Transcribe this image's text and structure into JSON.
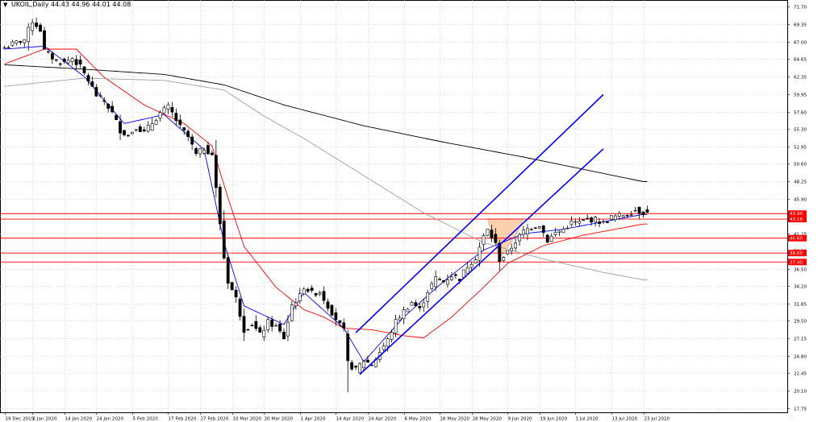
{
  "header": {
    "symbol_label": "UKOIL,Daily",
    "ohlc_label": "44.43 44.96 44.01 44.08"
  },
  "chart_data": {
    "type": "candlestick",
    "symbol": "UKOIL",
    "timeframe": "Daily",
    "ylim": [
      17.2,
      72.6
    ],
    "y_ticks": [
      71.7,
      69.35,
      67.0,
      64.65,
      62.35,
      59.95,
      57.6,
      55.3,
      52.95,
      50.6,
      48.25,
      45.9,
      43.55,
      41.25,
      38.9,
      36.5,
      34.2,
      31.85,
      29.5,
      27.15,
      24.8,
      22.45,
      20.1,
      17.75
    ],
    "x_ticks": [
      "19 Dec 2019",
      "2 Jan 2020",
      "14 Jan 2020",
      "24 Jan 2020",
      "5 Feb 2020",
      "17 Feb 2020",
      "27 Feb 2020",
      "10 Mar 2020",
      "20 Mar 2020",
      "1 Apr 2020",
      "14 Apr 2020",
      "24 Apr 2020",
      "6 May 2020",
      "18 May 2020",
      "28 May 2020",
      "9 Jun 2020",
      "19 Jun 2020",
      "1 Jul 2020",
      "13 Jul 2020",
      "23 Jul 2020"
    ],
    "x_tick_bar_index": [
      0,
      7,
      15,
      23,
      32,
      41,
      49,
      57,
      65,
      74,
      83,
      91,
      100,
      109,
      117,
      126,
      134,
      143,
      152,
      160
    ],
    "bar_count": 162,
    "close_anchors": [
      [
        0,
        66.2
      ],
      [
        3,
        66.9
      ],
      [
        5,
        67.3
      ],
      [
        7,
        69.8
      ],
      [
        9,
        68.6
      ],
      [
        10,
        65.8
      ],
      [
        13,
        64.4
      ],
      [
        15,
        64.2
      ],
      [
        17,
        64.8
      ],
      [
        19,
        63.6
      ],
      [
        21,
        61.8
      ],
      [
        23,
        59.8
      ],
      [
        25,
        59.0
      ],
      [
        27,
        57.4
      ],
      [
        29,
        55.1
      ],
      [
        31,
        54.4
      ],
      [
        33,
        55.6
      ],
      [
        35,
        54.8
      ],
      [
        37,
        56.1
      ],
      [
        39,
        57.4
      ],
      [
        41,
        58.2
      ],
      [
        42,
        57.4
      ],
      [
        44,
        55.5
      ],
      [
        46,
        54.2
      ],
      [
        48,
        51.8
      ],
      [
        50,
        52.7
      ],
      [
        52,
        51.9
      ],
      [
        53,
        47.2
      ],
      [
        55,
        38.0
      ],
      [
        56,
        34.8
      ],
      [
        58,
        32.5
      ],
      [
        60,
        28.3
      ],
      [
        62,
        29.1
      ],
      [
        64,
        27.6
      ],
      [
        66,
        29.3
      ],
      [
        68,
        28.7
      ],
      [
        70,
        27.2
      ],
      [
        72,
        31.6
      ],
      [
        74,
        32.8
      ],
      [
        75,
        34.1
      ],
      [
        77,
        33.2
      ],
      [
        79,
        33.4
      ],
      [
        81,
        31.5
      ],
      [
        83,
        29.8
      ],
      [
        85,
        28.1
      ],
      [
        86,
        23.8
      ],
      [
        88,
        22.9
      ],
      [
        90,
        24.2
      ],
      [
        92,
        23.6
      ],
      [
        94,
        25.3
      ],
      [
        96,
        26.9
      ],
      [
        98,
        29.4
      ],
      [
        100,
        30.8
      ],
      [
        102,
        32.0
      ],
      [
        104,
        31.0
      ],
      [
        106,
        33.5
      ],
      [
        108,
        35.2
      ],
      [
        110,
        34.8
      ],
      [
        112,
        35.6
      ],
      [
        114,
        35.2
      ],
      [
        116,
        36.9
      ],
      [
        118,
        38.0
      ],
      [
        120,
        40.8
      ],
      [
        121,
        41.7
      ],
      [
        123,
        39.8
      ],
      [
        124,
        37.7
      ],
      [
        126,
        38.6
      ],
      [
        128,
        40.2
      ],
      [
        130,
        41.5
      ],
      [
        132,
        42.1
      ],
      [
        134,
        42.4
      ],
      [
        136,
        40.3
      ],
      [
        138,
        41.3
      ],
      [
        140,
        41.8
      ],
      [
        142,
        42.7
      ],
      [
        144,
        42.7
      ],
      [
        146,
        43.1
      ],
      [
        148,
        43.1
      ],
      [
        150,
        42.6
      ],
      [
        152,
        43.4
      ],
      [
        154,
        43.6
      ],
      [
        156,
        43.9
      ],
      [
        158,
        44.4
      ],
      [
        159,
        44.2
      ],
      [
        160,
        44.08
      ]
    ],
    "last_bar": {
      "open": 44.43,
      "high": 44.96,
      "low": 44.01,
      "close": 44.08
    },
    "lows_marked": [
      [
        86,
        19.9
      ]
    ],
    "moving_averages": [
      {
        "color": "#0000ff",
        "anchors": [
          [
            0,
            66.0
          ],
          [
            10,
            66.4
          ],
          [
            20,
            62.3
          ],
          [
            30,
            56.0
          ],
          [
            40,
            57.2
          ],
          [
            50,
            52.5
          ],
          [
            55,
            40.0
          ],
          [
            60,
            31.5
          ],
          [
            70,
            29.0
          ],
          [
            75,
            33.3
          ],
          [
            85,
            28.5
          ],
          [
            90,
            24.0
          ],
          [
            100,
            30.0
          ],
          [
            110,
            34.8
          ],
          [
            120,
            39.0
          ],
          [
            130,
            41.2
          ],
          [
            140,
            41.8
          ],
          [
            150,
            42.8
          ],
          [
            160,
            43.8
          ]
        ]
      },
      {
        "color": "#ff0000",
        "anchors": [
          [
            0,
            64.0
          ],
          [
            10,
            66.0
          ],
          [
            18,
            66.0
          ],
          [
            25,
            62.2
          ],
          [
            35,
            58.5
          ],
          [
            45,
            56.0
          ],
          [
            52,
            53.0
          ],
          [
            56,
            46.0
          ],
          [
            60,
            39.5
          ],
          [
            68,
            34.0
          ],
          [
            75,
            31.0
          ],
          [
            80,
            30.0
          ],
          [
            85,
            28.5
          ],
          [
            92,
            28.3
          ],
          [
            100,
            27.5
          ],
          [
            105,
            27.2
          ],
          [
            112,
            30.0
          ],
          [
            120,
            34.0
          ],
          [
            126,
            37.2
          ],
          [
            135,
            39.6
          ],
          [
            145,
            41.0
          ],
          [
            155,
            42.0
          ],
          [
            160,
            42.5
          ]
        ]
      },
      {
        "color": "#000000",
        "anchors": [
          [
            0,
            63.9
          ],
          [
            20,
            63.3
          ],
          [
            40,
            62.6
          ],
          [
            55,
            61.2
          ],
          [
            70,
            58.5
          ],
          [
            90,
            55.7
          ],
          [
            110,
            53.5
          ],
          [
            130,
            51.5
          ],
          [
            150,
            49.3
          ],
          [
            160,
            48.2
          ]
        ]
      },
      {
        "color": "#a0a0a0",
        "anchors": [
          [
            0,
            61.0
          ],
          [
            20,
            62.1
          ],
          [
            40,
            61.8
          ],
          [
            55,
            60.5
          ],
          [
            65,
            57.0
          ],
          [
            75,
            54.0
          ],
          [
            90,
            49.0
          ],
          [
            105,
            44.0
          ],
          [
            120,
            40.0
          ],
          [
            135,
            37.8
          ],
          [
            150,
            36.0
          ],
          [
            160,
            35.0
          ]
        ]
      }
    ],
    "channel_lines": [
      {
        "color": "#0000ff",
        "from": [
          88,
          27.9
        ],
        "to": [
          150,
          59.9
        ]
      },
      {
        "color": "#0000ff",
        "from": [
          89,
          22.3
        ],
        "to": [
          150,
          52.6
        ]
      }
    ],
    "triangle_zone": {
      "color": "#f9c8a0",
      "points": [
        [
          121,
          43.2
        ],
        [
          130,
          43.2
        ],
        [
          128,
          40.9
        ],
        [
          124,
          37.9
        ]
      ]
    },
    "support_resistance": [
      {
        "price": 43.9,
        "label": "43.90"
      },
      {
        "price": 43.16,
        "label": "43.16"
      },
      {
        "price": 40.6,
        "label": "40.60"
      },
      {
        "price": 38.6,
        "label": "38.60"
      },
      {
        "price": 37.4,
        "label": "37.40"
      }
    ],
    "current_price": 44.08,
    "colors": {
      "bull": "#ffffff",
      "bear": "#000000",
      "grid": "#c0c0c0",
      "level_line": "#ff0000",
      "level_label_bg": "#ff0000"
    }
  }
}
